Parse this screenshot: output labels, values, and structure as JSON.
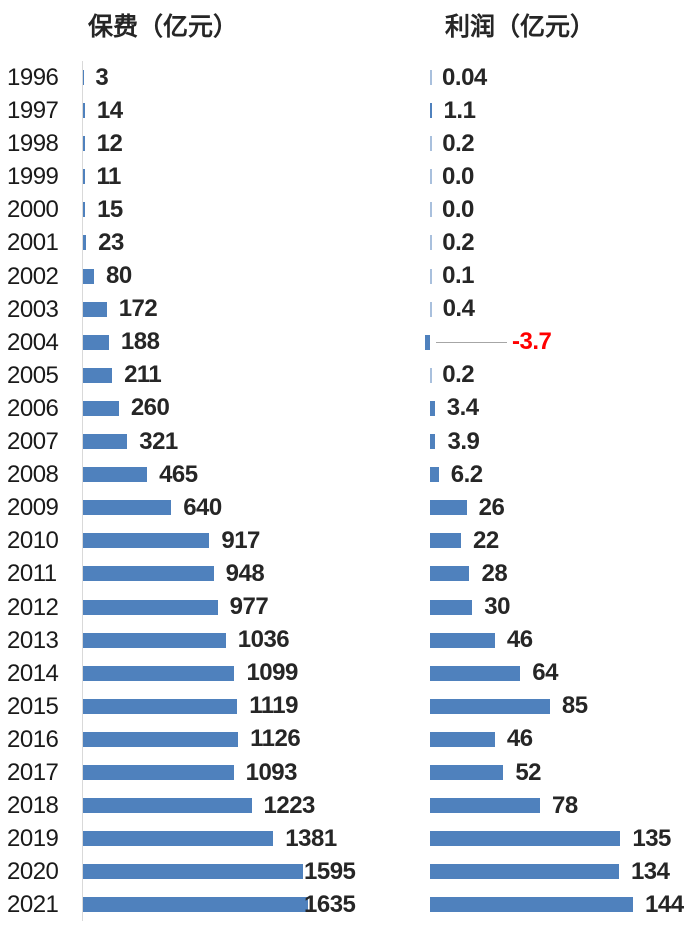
{
  "chart_data": {
    "type": "bar",
    "orientation": "horizontal",
    "title": "",
    "grid": false,
    "legend_position": "none",
    "categories": [
      "1996",
      "1997",
      "1998",
      "1999",
      "2000",
      "2001",
      "2002",
      "2003",
      "2004",
      "2005",
      "2006",
      "2007",
      "2008",
      "2009",
      "2010",
      "2011",
      "2012",
      "2013",
      "2014",
      "2015",
      "2016",
      "2017",
      "2018",
      "2019",
      "2020",
      "2021"
    ],
    "series": [
      {
        "name": "保费（亿元）",
        "values": [
          3,
          14,
          12,
          11,
          15,
          23,
          80,
          172,
          188,
          211,
          260,
          321,
          465,
          640,
          917,
          948,
          977,
          1036,
          1099,
          1119,
          1126,
          1093,
          1223,
          1381,
          1595,
          1635
        ],
        "labels": [
          "3",
          "14",
          "12",
          "11",
          "15",
          "23",
          "80",
          "172",
          "188",
          "211",
          "260",
          "321",
          "465",
          "640",
          "917",
          "948",
          "977",
          "1036",
          "1099",
          "1119",
          "1126",
          "1093",
          "1223",
          "1381",
          "1595",
          "1635"
        ]
      },
      {
        "name": "利润（亿元）",
        "values": [
          0.04,
          1.1,
          0.2,
          0.0,
          0.0,
          0.2,
          0.1,
          0.4,
          -3.7,
          0.2,
          3.4,
          3.9,
          6.2,
          26,
          22,
          28,
          30,
          46,
          64,
          85,
          46,
          52,
          78,
          135,
          134,
          144
        ],
        "labels": [
          "0.04",
          "1.1",
          "0.2",
          "0.0",
          "0.0",
          "0.2",
          "0.1",
          "0.4",
          "-3.7",
          "0.2",
          "3.4",
          "3.9",
          "6.2",
          "26",
          "22",
          "28",
          "30",
          "46",
          "64",
          "85",
          "46",
          "52",
          "78",
          "135",
          "134",
          "144"
        ]
      }
    ],
    "bar_color": "#4f81bd",
    "tiny_bar_color": "#a9c0dd",
    "data_label_color": "#262626",
    "negative_label_color": "#ff0000",
    "category_label_color": "#1a1a1a",
    "axis_line_color": "#d9d9d9",
    "leader_line_color": "#a6a6a6",
    "annotations": [
      {
        "category": "2004",
        "series": "利润（亿元）",
        "note": "negative value shown in red with gray leader line"
      }
    ]
  }
}
